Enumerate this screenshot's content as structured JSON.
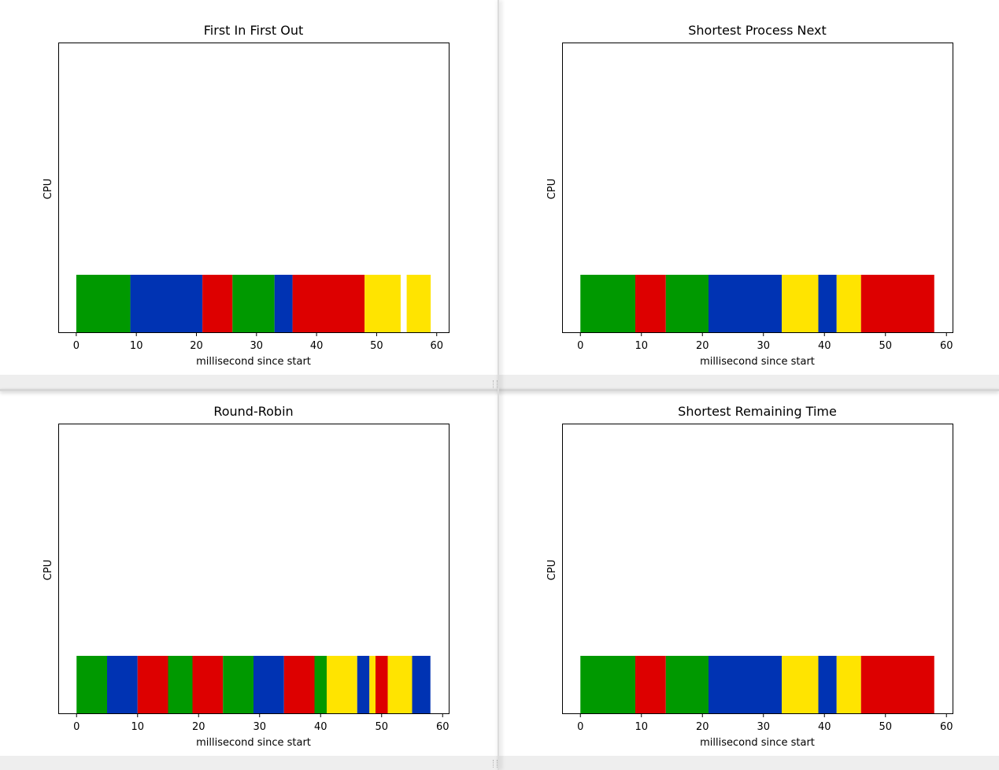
{
  "colors": {
    "green": "#009900",
    "blue": "#0033b3",
    "red": "#dd0000",
    "yellow": "#ffe400"
  },
  "chart_data": [
    {
      "type": "bar",
      "title": "First In First Out",
      "xlabel": "millisecond since start",
      "ylabel": "CPU",
      "xlim": [
        -3,
        62
      ],
      "xticks": [
        "0",
        "10",
        "20",
        "30",
        "40",
        "50",
        "60"
      ],
      "segments": [
        {
          "start": 0,
          "end": 9,
          "color": "green"
        },
        {
          "start": 9,
          "end": 21,
          "color": "blue"
        },
        {
          "start": 21,
          "end": 26,
          "color": "red"
        },
        {
          "start": 26,
          "end": 33,
          "color": "green"
        },
        {
          "start": 33,
          "end": 36,
          "color": "blue"
        },
        {
          "start": 36,
          "end": 48,
          "color": "red"
        },
        {
          "start": 48,
          "end": 54,
          "color": "yellow"
        },
        {
          "start": 55,
          "end": 59,
          "color": "yellow"
        }
      ]
    },
    {
      "type": "bar",
      "title": "Shortest Process Next",
      "xlabel": "millisecond since start",
      "ylabel": "CPU",
      "xlim": [
        -3,
        61
      ],
      "xticks": [
        "0",
        "10",
        "20",
        "30",
        "40",
        "50",
        "60"
      ],
      "segments": [
        {
          "start": 0,
          "end": 9,
          "color": "green"
        },
        {
          "start": 9,
          "end": 14,
          "color": "red"
        },
        {
          "start": 14,
          "end": 21,
          "color": "green"
        },
        {
          "start": 21,
          "end": 33,
          "color": "blue"
        },
        {
          "start": 33,
          "end": 39,
          "color": "yellow"
        },
        {
          "start": 39,
          "end": 42,
          "color": "blue"
        },
        {
          "start": 42,
          "end": 46,
          "color": "yellow"
        },
        {
          "start": 46,
          "end": 58,
          "color": "red"
        }
      ]
    },
    {
      "type": "bar",
      "title": "Round-Robin",
      "xlabel": "millisecond since start",
      "ylabel": "CPU",
      "xlim": [
        -3,
        61
      ],
      "xticks": [
        "0",
        "10",
        "20",
        "30",
        "40",
        "50",
        "60"
      ],
      "segments": [
        {
          "start": 0,
          "end": 5,
          "color": "green"
        },
        {
          "start": 5,
          "end": 10,
          "color": "blue"
        },
        {
          "start": 10,
          "end": 15,
          "color": "red"
        },
        {
          "start": 15,
          "end": 19,
          "color": "green"
        },
        {
          "start": 19,
          "end": 24,
          "color": "red"
        },
        {
          "start": 24,
          "end": 29,
          "color": "green"
        },
        {
          "start": 29,
          "end": 34,
          "color": "blue"
        },
        {
          "start": 34,
          "end": 39,
          "color": "red"
        },
        {
          "start": 39,
          "end": 41,
          "color": "green"
        },
        {
          "start": 41,
          "end": 46,
          "color": "yellow"
        },
        {
          "start": 46,
          "end": 48,
          "color": "blue"
        },
        {
          "start": 48,
          "end": 49,
          "color": "yellow"
        },
        {
          "start": 49,
          "end": 51,
          "color": "red"
        },
        {
          "start": 51,
          "end": 55,
          "color": "yellow"
        },
        {
          "start": 55,
          "end": 58,
          "color": "blue"
        }
      ]
    },
    {
      "type": "bar",
      "title": "Shortest Remaining Time",
      "xlabel": "millisecond since start",
      "ylabel": "CPU",
      "xlim": [
        -3,
        61
      ],
      "xticks": [
        "0",
        "10",
        "20",
        "30",
        "40",
        "50",
        "60"
      ],
      "segments": [
        {
          "start": 0,
          "end": 9,
          "color": "green"
        },
        {
          "start": 9,
          "end": 14,
          "color": "red"
        },
        {
          "start": 14,
          "end": 21,
          "color": "green"
        },
        {
          "start": 21,
          "end": 33,
          "color": "blue"
        },
        {
          "start": 33,
          "end": 39,
          "color": "yellow"
        },
        {
          "start": 39,
          "end": 42,
          "color": "blue"
        },
        {
          "start": 42,
          "end": 46,
          "color": "yellow"
        },
        {
          "start": 46,
          "end": 58,
          "color": "red"
        }
      ]
    }
  ]
}
